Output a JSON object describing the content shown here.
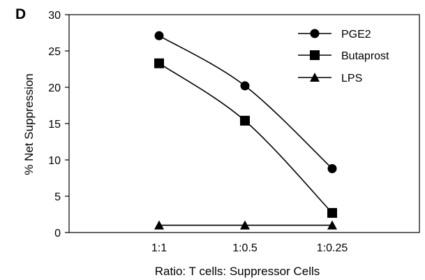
{
  "panel_label": "D",
  "chart_data": {
    "type": "line",
    "title": "",
    "xlabel": "Ratio: T cells: Suppressor Cells",
    "ylabel": "% Net Suppression",
    "categories": [
      "1:1",
      "1:0.5",
      "1:0.25"
    ],
    "ylim": [
      0,
      30
    ],
    "yticks": [
      0,
      5,
      10,
      15,
      20,
      25,
      30
    ],
    "grid": false,
    "legend_position": "top-right",
    "series": [
      {
        "name": "PGE2",
        "marker": "circle",
        "color": "#000000",
        "values": [
          27.1,
          20.2,
          8.8
        ]
      },
      {
        "name": "Butaprost",
        "marker": "square",
        "color": "#000000",
        "values": [
          23.3,
          15.4,
          2.7
        ]
      },
      {
        "name": "LPS",
        "marker": "triangle",
        "color": "#000000",
        "values": [
          1.0,
          1.0,
          1.0
        ]
      }
    ]
  }
}
